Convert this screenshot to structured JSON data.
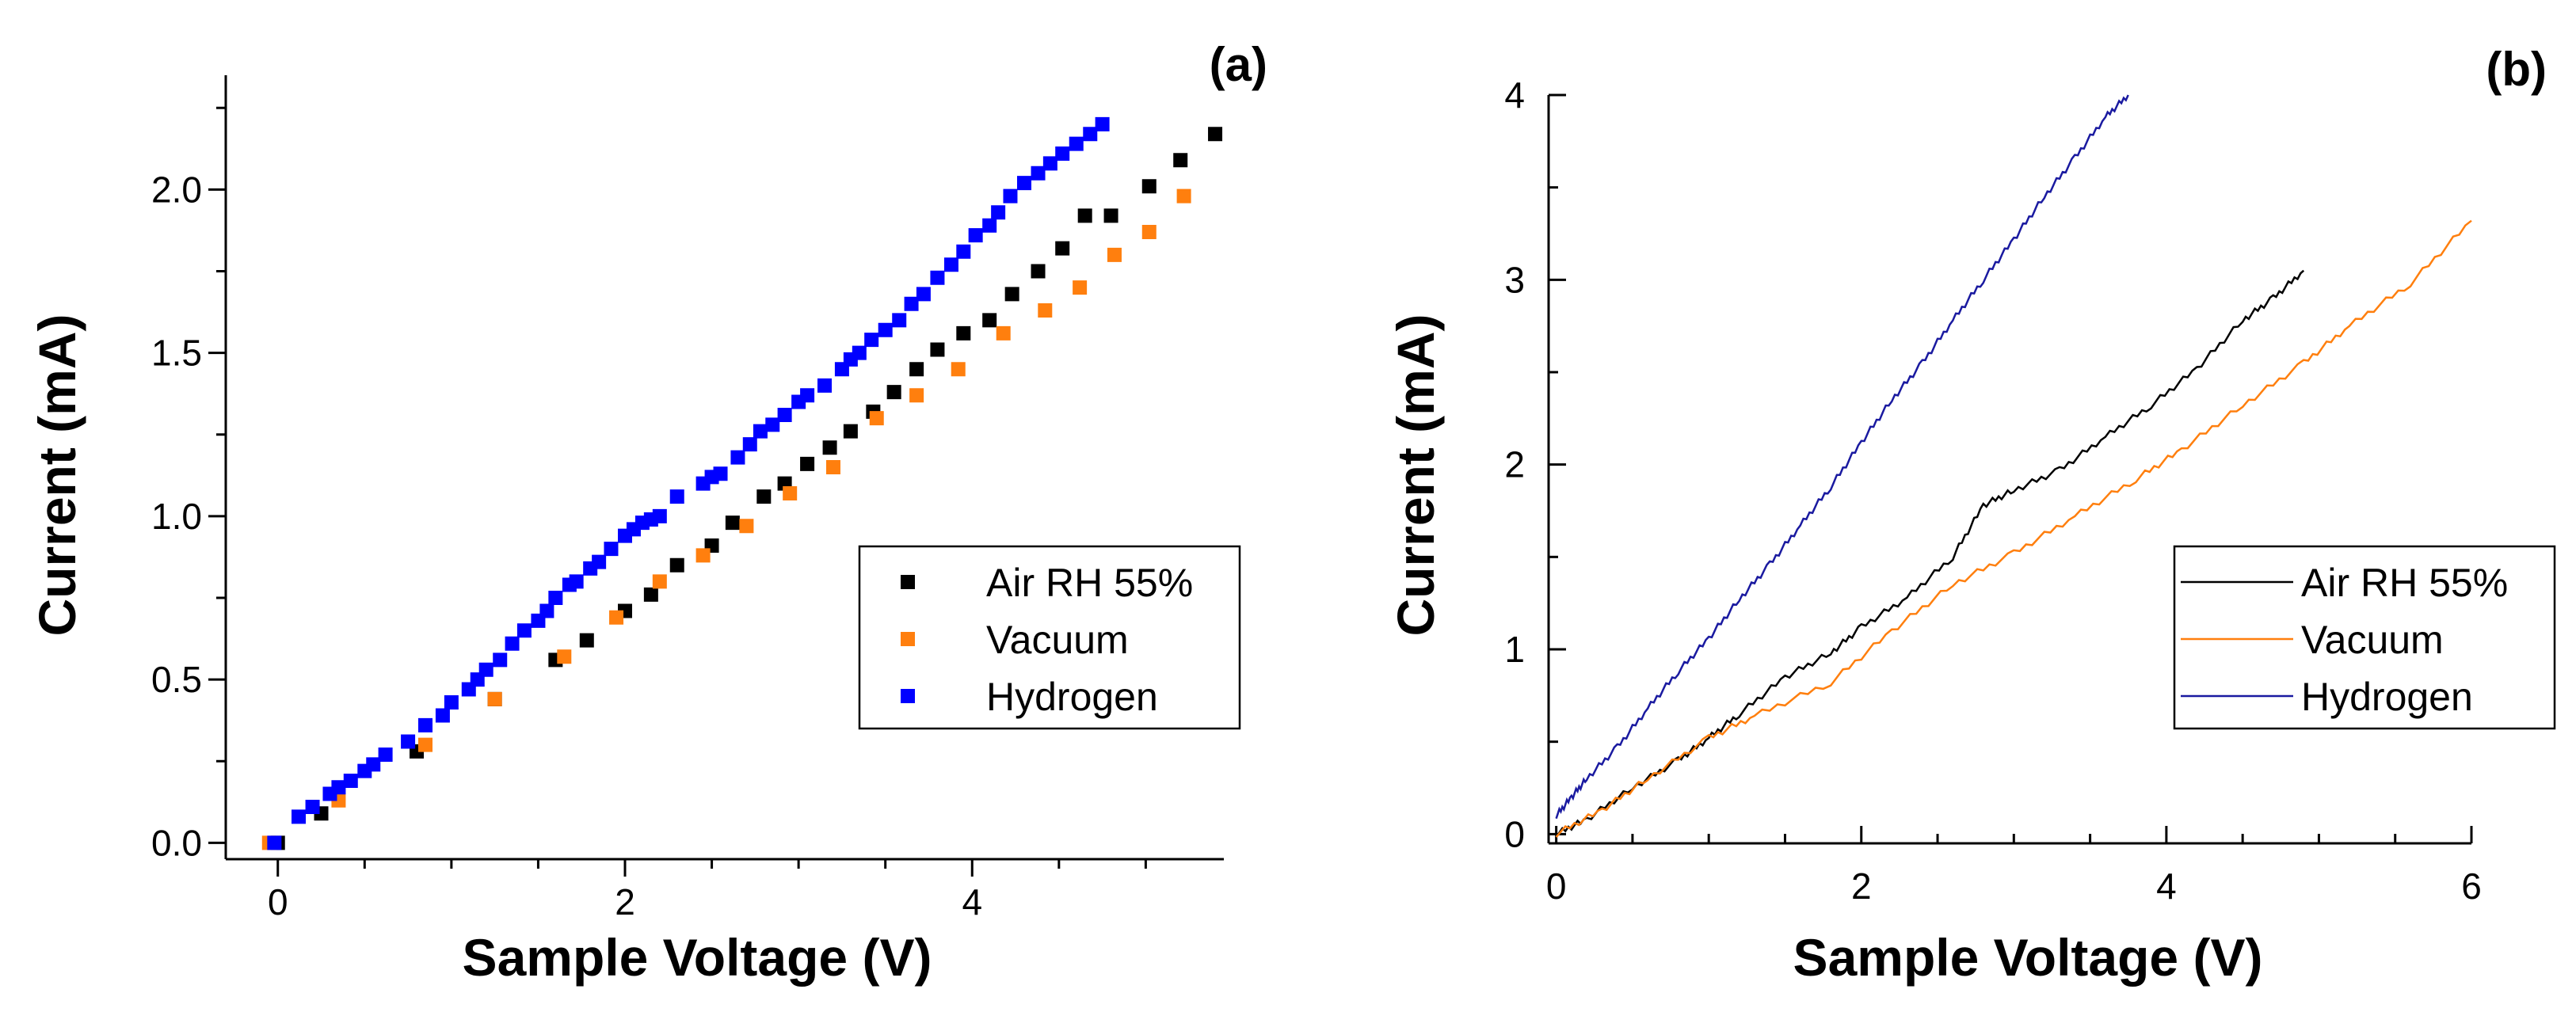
{
  "chart_data": [
    {
      "type": "scatter",
      "panel_label": "(a)",
      "xlabel": "Sample Voltage (V)",
      "ylabel": "Current (mA)",
      "xlim": [
        -0.3,
        5.45
      ],
      "ylim": [
        -0.05,
        2.35
      ],
      "xticks": [
        {
          "v": 0,
          "label": "0"
        },
        {
          "v": 2,
          "label": "2"
        },
        {
          "v": 4,
          "label": "4"
        }
      ],
      "yticks": [
        {
          "v": 0,
          "label": "0.0"
        },
        {
          "v": 0.5,
          "label": "0.5"
        },
        {
          "v": 1.0,
          "label": "1.0"
        },
        {
          "v": 1.5,
          "label": "1.5"
        },
        {
          "v": 2.0,
          "label": "2.0"
        }
      ],
      "legend_position": "center-right",
      "series": [
        {
          "name": "Air RH 55%",
          "color": "#000000",
          "x": [
            0.0,
            0.25,
            0.8,
            1.25,
            1.6,
            1.78,
            2.0,
            2.15,
            2.3,
            2.5,
            2.62,
            2.8,
            2.92,
            3.05,
            3.18,
            3.3,
            3.43,
            3.55,
            3.68,
            3.8,
            3.95,
            4.1,
            4.23,
            4.38,
            4.52,
            4.65,
            4.8,
            5.02,
            5.2,
            5.4
          ],
          "y": [
            0.0,
            0.09,
            0.28,
            0.44,
            0.56,
            0.62,
            0.71,
            0.76,
            0.85,
            0.91,
            0.98,
            1.06,
            1.1,
            1.16,
            1.21,
            1.26,
            1.32,
            1.38,
            1.45,
            1.51,
            1.56,
            1.6,
            1.68,
            1.75,
            1.82,
            1.92,
            1.92,
            2.01,
            2.09,
            2.17
          ]
        },
        {
          "name": "Vacuum",
          "color": "#ff7f0e",
          "x": [
            -0.05,
            0.35,
            0.85,
            1.25,
            1.65,
            1.95,
            2.2,
            2.45,
            2.7,
            2.95,
            3.2,
            3.45,
            3.68,
            3.92,
            4.18,
            4.42,
            4.62,
            4.82,
            5.02,
            5.22
          ],
          "y": [
            0.0,
            0.13,
            0.3,
            0.44,
            0.57,
            0.69,
            0.8,
            0.88,
            0.97,
            1.07,
            1.15,
            1.3,
            1.37,
            1.45,
            1.56,
            1.63,
            1.7,
            1.8,
            1.87,
            1.98
          ]
        },
        {
          "name": "Hydrogen",
          "color": "#0000ff",
          "x": [
            -0.02,
            0.12,
            0.2,
            0.3,
            0.35,
            0.42,
            0.5,
            0.55,
            0.62,
            0.75,
            0.85,
            0.95,
            1.0,
            1.1,
            1.15,
            1.2,
            1.28,
            1.35,
            1.42,
            1.5,
            1.55,
            1.6,
            1.68,
            1.72,
            1.8,
            1.85,
            1.92,
            2.0,
            2.05,
            2.1,
            2.15,
            2.2,
            2.3,
            2.45,
            2.5,
            2.55,
            2.65,
            2.72,
            2.78,
            2.85,
            2.92,
            3.0,
            3.05,
            3.15,
            3.25,
            3.3,
            3.35,
            3.42,
            3.5,
            3.58,
            3.65,
            3.72,
            3.8,
            3.88,
            3.95,
            4.02,
            4.1,
            4.15,
            4.22,
            4.3,
            4.38,
            4.45,
            4.52,
            4.6,
            4.68,
            4.75
          ],
          "y": [
            0.0,
            0.08,
            0.11,
            0.15,
            0.17,
            0.19,
            0.22,
            0.24,
            0.27,
            0.31,
            0.36,
            0.39,
            0.43,
            0.47,
            0.5,
            0.53,
            0.56,
            0.61,
            0.65,
            0.68,
            0.71,
            0.75,
            0.79,
            0.8,
            0.84,
            0.86,
            0.9,
            0.94,
            0.96,
            0.98,
            0.99,
            1.0,
            1.06,
            1.1,
            1.12,
            1.13,
            1.18,
            1.22,
            1.26,
            1.28,
            1.31,
            1.35,
            1.37,
            1.4,
            1.45,
            1.48,
            1.5,
            1.54,
            1.57,
            1.6,
            1.65,
            1.68,
            1.73,
            1.77,
            1.81,
            1.86,
            1.89,
            1.93,
            1.98,
            2.02,
            2.05,
            2.08,
            2.11,
            2.14,
            2.17,
            2.2
          ]
        }
      ]
    },
    {
      "type": "line",
      "panel_label": "(b)",
      "xlabel": "Sample Voltage (V)",
      "ylabel": "Current (mA)",
      "xlim": [
        -0.05,
        6.0
      ],
      "ylim": [
        -0.05,
        4.0
      ],
      "xticks": [
        {
          "v": 0,
          "label": "0"
        },
        {
          "v": 2,
          "label": "2"
        },
        {
          "v": 4,
          "label": "4"
        },
        {
          "v": 6,
          "label": "6"
        }
      ],
      "yticks": [
        {
          "v": 0,
          "label": "0"
        },
        {
          "v": 1,
          "label": "1"
        },
        {
          "v": 2,
          "label": "2"
        },
        {
          "v": 3,
          "label": "3"
        },
        {
          "v": 4,
          "label": "4"
        }
      ],
      "legend_position": "center-right",
      "series": [
        {
          "name": "Air RH 55%",
          "color": "#000000",
          "x": [
            0.0,
            0.2,
            0.5,
            0.8,
            1.0,
            1.2,
            1.5,
            1.8,
            2.0,
            2.3,
            2.6,
            2.8,
            3.0,
            3.3,
            3.6,
            3.9,
            4.2,
            4.5,
            4.7,
            4.9
          ],
          "y": [
            0.0,
            0.08,
            0.25,
            0.4,
            0.52,
            0.65,
            0.85,
            0.98,
            1.12,
            1.28,
            1.5,
            1.78,
            1.86,
            1.97,
            2.15,
            2.32,
            2.52,
            2.78,
            2.9,
            3.05
          ]
        },
        {
          "name": "Vacuum",
          "color": "#ff7f0e",
          "x": [
            0.0,
            0.3,
            0.6,
            1.0,
            1.3,
            1.8,
            2.2,
            2.6,
            3.0,
            3.4,
            3.8,
            4.1,
            4.5,
            4.9,
            5.2,
            5.6,
            6.0
          ],
          "y": [
            0.0,
            0.13,
            0.3,
            0.52,
            0.64,
            0.82,
            1.1,
            1.35,
            1.52,
            1.72,
            1.92,
            2.08,
            2.32,
            2.55,
            2.75,
            2.98,
            3.32
          ]
        },
        {
          "name": "Hydrogen",
          "color": "#1a1aa0",
          "x": [
            0.0,
            0.1,
            0.2,
            0.4,
            0.6,
            0.8,
            1.0,
            1.2,
            1.4,
            1.6,
            1.8,
            2.0,
            2.2,
            2.4,
            2.6,
            2.8,
            3.0,
            3.2,
            3.4,
            3.6,
            3.75
          ],
          "y": [
            0.1,
            0.2,
            0.3,
            0.47,
            0.68,
            0.88,
            1.06,
            1.27,
            1.46,
            1.67,
            1.88,
            2.12,
            2.35,
            2.55,
            2.78,
            3.0,
            3.22,
            3.45,
            3.66,
            3.88,
            4.0
          ]
        }
      ]
    }
  ]
}
